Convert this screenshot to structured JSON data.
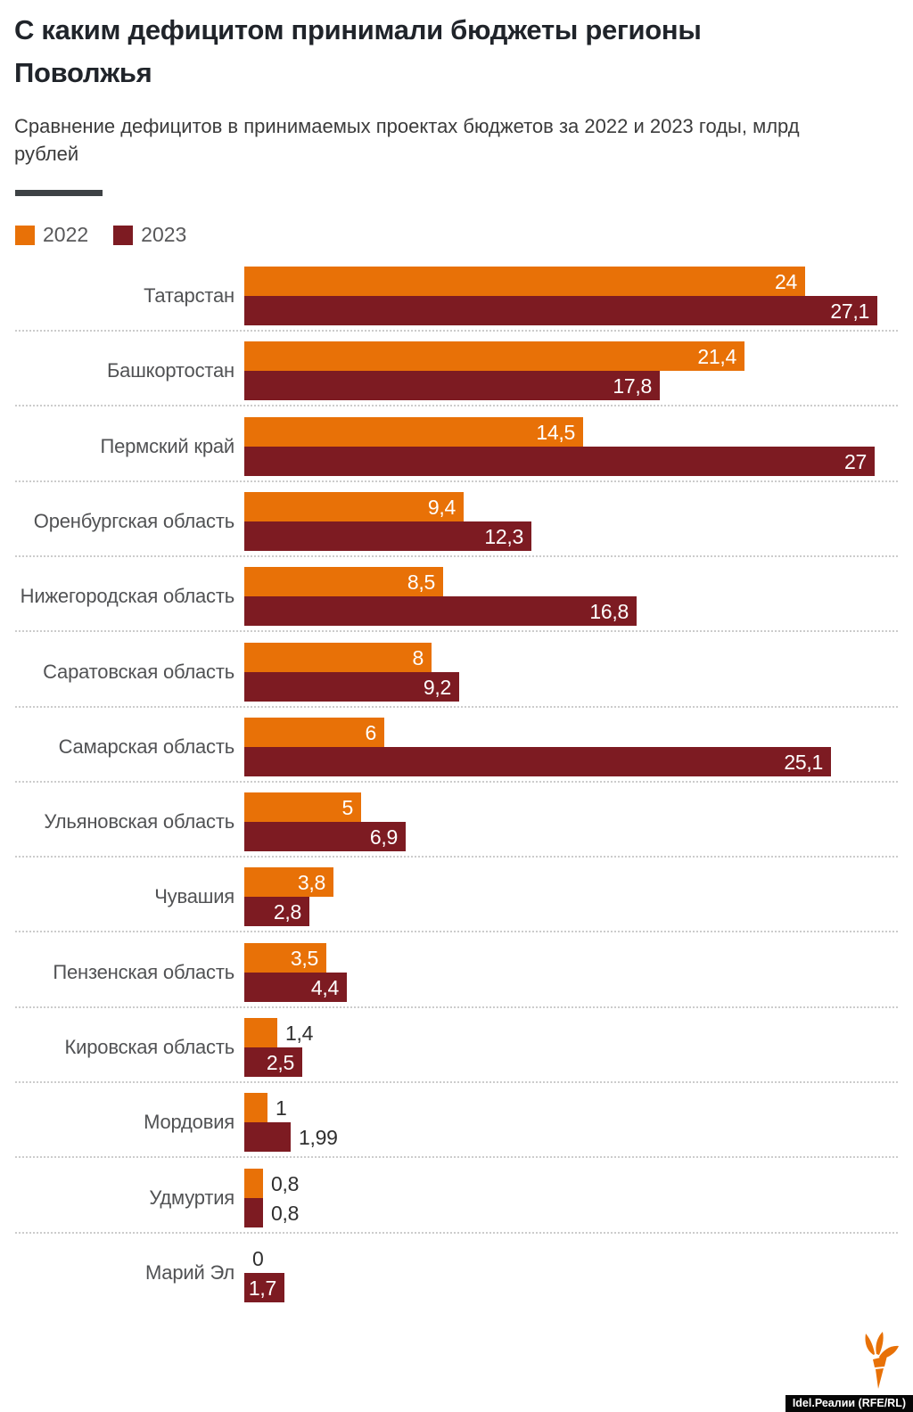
{
  "title": "С каким дефицитом принимали бюджеты регионы Поволжья",
  "subtitle": "Сравнение дефицитов в принимаемых проектах бюджетов за 2022 и 2023 годы, млрд рублей",
  "legend": [
    {
      "label": "2022",
      "color": "#E87107"
    },
    {
      "label": "2023",
      "color": "#7D1B22"
    }
  ],
  "source_label": "Idel.Реалии (RFE/RL)",
  "logo": "rferl-torch",
  "colors": {
    "bar_2022": "#E87107",
    "bar_2023": "#7D1B22",
    "title_text": "#20242A",
    "subtitle_text": "#3B3B3B",
    "category_label": "#515254",
    "value_inside": "#FFFFFF",
    "value_outside": "#2F2F2F",
    "divider": "#3E4245",
    "separator_dots": "#CCCCCC",
    "badge_bg": "#060606",
    "badge_text": "#FFFFFF",
    "logo_orange": "#E87107"
  },
  "chart_data": {
    "type": "bar",
    "orientation": "horizontal",
    "unit": "млрд рублей",
    "xlim": [
      0,
      27.1
    ],
    "grid": false,
    "legend_position": "top-left",
    "categories": [
      "Татарстан",
      "Башкортостан",
      "Пермский край",
      "Оренбургская область",
      "Нижегородская область",
      "Саратовская область",
      "Самарская область",
      "Ульяновская область",
      "Чувашия",
      "Пензенская область",
      "Кировская область",
      "Мордовия",
      "Удмуртия",
      "Марий Эл"
    ],
    "series": [
      {
        "name": "2022",
        "color": "#E87107",
        "values": [
          24,
          21.4,
          14.5,
          9.4,
          8.5,
          8,
          6,
          5,
          3.8,
          3.5,
          1.4,
          1,
          0.8,
          0
        ]
      },
      {
        "name": "2023",
        "color": "#7D1B22",
        "values": [
          27.1,
          17.8,
          27,
          12.3,
          16.8,
          9.2,
          25.1,
          6.9,
          2.8,
          4.4,
          2.5,
          1.99,
          0.8,
          1.7
        ]
      }
    ],
    "value_labels": [
      [
        "24",
        "27,1"
      ],
      [
        "21,4",
        "17,8"
      ],
      [
        "14,5",
        "27"
      ],
      [
        "9,4",
        "12,3"
      ],
      [
        "8,5",
        "16,8"
      ],
      [
        "8",
        "9,2"
      ],
      [
        "6",
        "25,1"
      ],
      [
        "5",
        "6,9"
      ],
      [
        "3,8",
        "2,8"
      ],
      [
        "3,5",
        "4,4"
      ],
      [
        "1,4",
        "2,5"
      ],
      [
        "1",
        "1,99"
      ],
      [
        "0,8",
        "0,8"
      ],
      [
        "0",
        "1,7"
      ]
    ],
    "label_inside": [
      [
        true,
        true
      ],
      [
        true,
        true
      ],
      [
        true,
        true
      ],
      [
        true,
        true
      ],
      [
        true,
        true
      ],
      [
        true,
        true
      ],
      [
        true,
        true
      ],
      [
        true,
        true
      ],
      [
        true,
        true
      ],
      [
        true,
        true
      ],
      [
        false,
        true
      ],
      [
        false,
        false
      ],
      [
        false,
        false
      ],
      [
        false,
        true
      ]
    ]
  }
}
